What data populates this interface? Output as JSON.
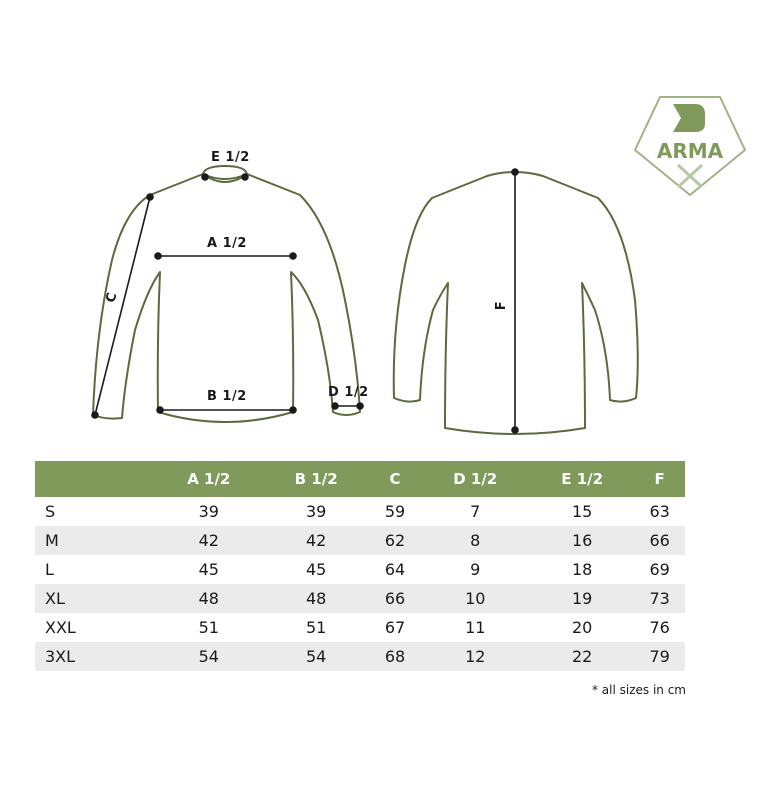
{
  "brand": {
    "logo_text": "ARMA",
    "logo_mark": "D",
    "logo_sub": "X",
    "color": "#7f9a5a"
  },
  "diagram": {
    "labels": {
      "e": "E 1/2",
      "a": "A 1/2",
      "b": "B 1/2",
      "c": "C",
      "d": "D 1/2",
      "f": "F"
    },
    "outline_color": "#5b6b3e"
  },
  "table": {
    "header_color": "#7f9a5a",
    "columns": [
      "",
      "A 1/2",
      "B 1/2",
      "C",
      "D 1/2",
      "E 1/2",
      "F"
    ],
    "rows": [
      [
        "S",
        "39",
        "39",
        "59",
        "7",
        "15",
        "63"
      ],
      [
        "M",
        "42",
        "42",
        "62",
        "8",
        "16",
        "66"
      ],
      [
        "L",
        "45",
        "45",
        "64",
        "9",
        "18",
        "69"
      ],
      [
        "XL",
        "48",
        "48",
        "66",
        "10",
        "19",
        "73"
      ],
      [
        "XXL",
        "51",
        "51",
        "67",
        "11",
        "20",
        "76"
      ],
      [
        "3XL",
        "54",
        "54",
        "68",
        "12",
        "22",
        "79"
      ]
    ]
  },
  "footnote": "* all sizes in cm"
}
